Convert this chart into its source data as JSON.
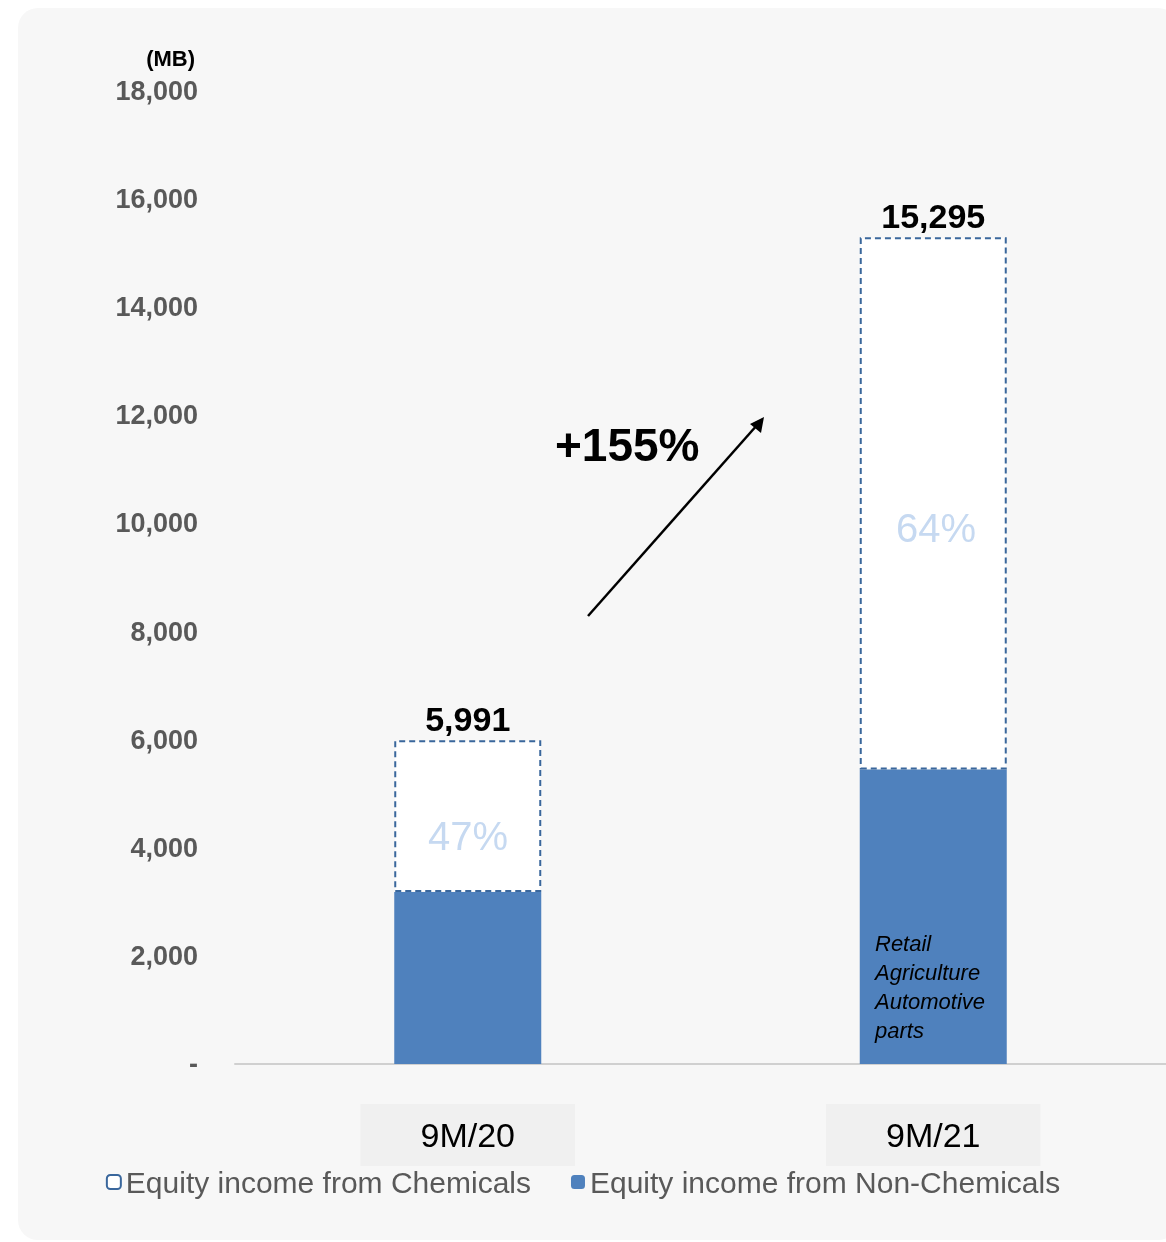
{
  "chart_data": {
    "type": "bar",
    "stacked": true,
    "categories": [
      "9M/20",
      "9M/21"
    ],
    "series": [
      {
        "name": "Equity income from Non-Chemicals",
        "color": "#4f81bd",
        "values": [
          3180,
          5450
        ]
      },
      {
        "name": "Equity income from Chemicals",
        "color": "#ffffff",
        "values": [
          2811,
          9845
        ]
      }
    ],
    "totals": [
      "5,991",
      "15,295"
    ],
    "ylabel": "(MB)",
    "ylim": [
      0,
      18000
    ],
    "yticks": [
      {
        "value": 0,
        "label": "-"
      },
      {
        "value": 2000,
        "label": "2,000"
      },
      {
        "value": 4000,
        "label": "4,000"
      },
      {
        "value": 6000,
        "label": "6,000"
      },
      {
        "value": 8000,
        "label": "8,000"
      },
      {
        "value": 10000,
        "label": "10,000"
      },
      {
        "value": 12000,
        "label": "12,000"
      },
      {
        "value": 14000,
        "label": "14,000"
      },
      {
        "value": 16000,
        "label": "16,000"
      },
      {
        "value": 18000,
        "label": "18,000"
      }
    ],
    "grid": false,
    "legend": "bottom",
    "annotations": [
      "+155%",
      "47%",
      "64%",
      "Retail Agriculture Automotive parts"
    ]
  }
}
